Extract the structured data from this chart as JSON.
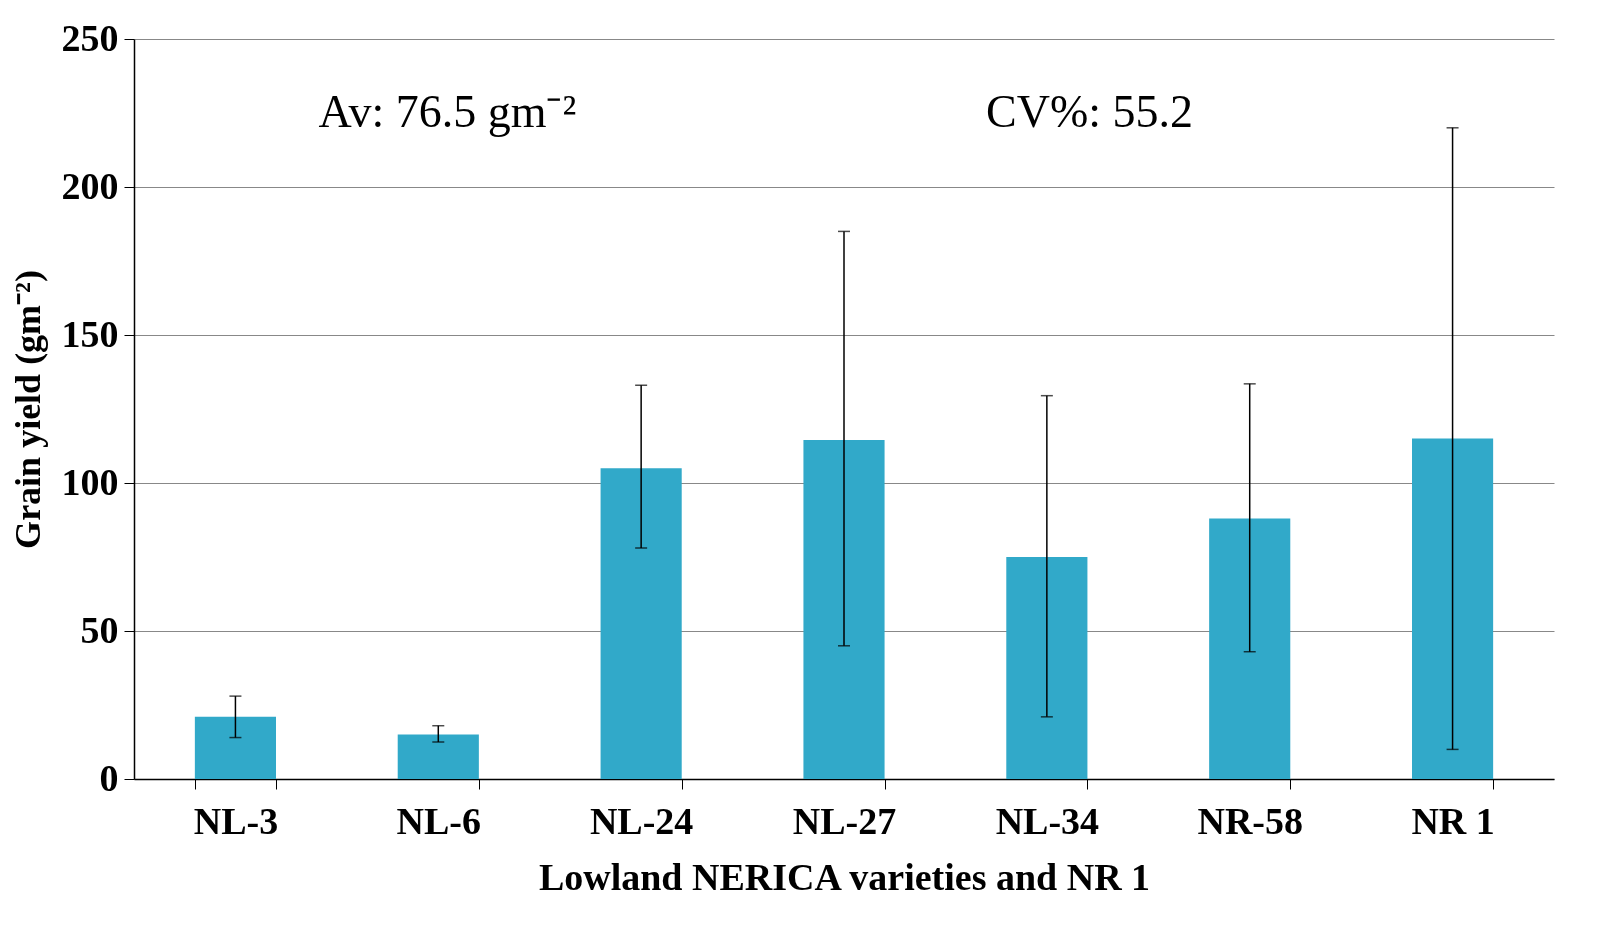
{
  "chart_data": {
    "type": "bar",
    "xlabel": "Lowland NERICA varieties and NR 1",
    "ylabel": "Grain yield (gm⁻²)",
    "categories": [
      "NL-3",
      "NL-6",
      "NL-24",
      "NL-27",
      "NL-34",
      "NR-58",
      "NR 1"
    ],
    "values": [
      21,
      15,
      105,
      114.5,
      75,
      88,
      115
    ],
    "errors": [
      [
        14,
        28
      ],
      [
        12.5,
        18
      ],
      [
        78,
        133
      ],
      [
        45,
        185
      ],
      [
        21,
        129.5
      ],
      [
        43,
        133.5
      ],
      [
        10,
        220
      ]
    ],
    "color": "#31a9c9",
    "ylim": [
      0,
      250
    ],
    "yticks": [
      0,
      50,
      100,
      150,
      200,
      250
    ],
    "grid": "y",
    "annotations": [
      "Av:  76.5 gm⁻²",
      "CV%:  55.2"
    ]
  }
}
